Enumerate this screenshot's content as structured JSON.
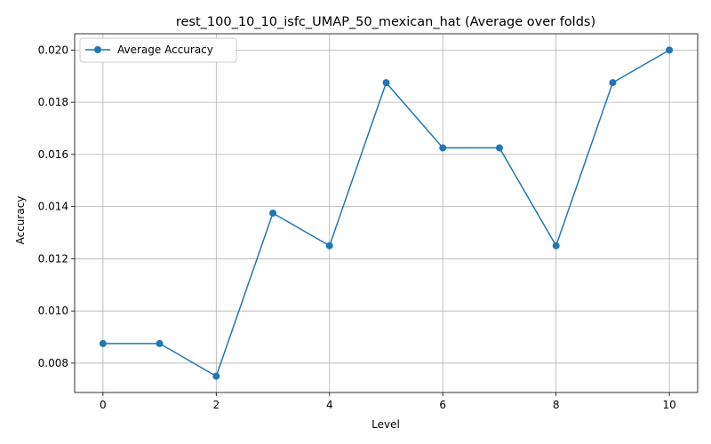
{
  "chart_data": {
    "type": "line",
    "title": "rest_100_10_10_isfc_UMAP_50_mexican_hat (Average over folds)",
    "xlabel": "Level",
    "ylabel": "Accuracy",
    "x": [
      0,
      1,
      2,
      3,
      4,
      5,
      6,
      7,
      8,
      9,
      10
    ],
    "series": [
      {
        "name": "Average Accuracy",
        "values": [
          0.00875,
          0.00875,
          0.0075,
          0.01375,
          0.0125,
          0.01875,
          0.01625,
          0.01625,
          0.0125,
          0.01875,
          0.02
        ],
        "color": "#1f77b4",
        "marker": "circle"
      }
    ],
    "xlim": [
      -0.5,
      10.5
    ],
    "ylim": [
      0.006875,
      0.020625
    ],
    "xticks": [
      0,
      2,
      4,
      6,
      8,
      10
    ],
    "yticks": [
      0.008,
      0.01,
      0.012,
      0.014,
      0.016,
      0.018,
      0.02
    ],
    "ytick_labels": [
      "0.008",
      "0.010",
      "0.012",
      "0.014",
      "0.016",
      "0.018",
      "0.020"
    ],
    "grid": true,
    "legend": "upper-left"
  }
}
